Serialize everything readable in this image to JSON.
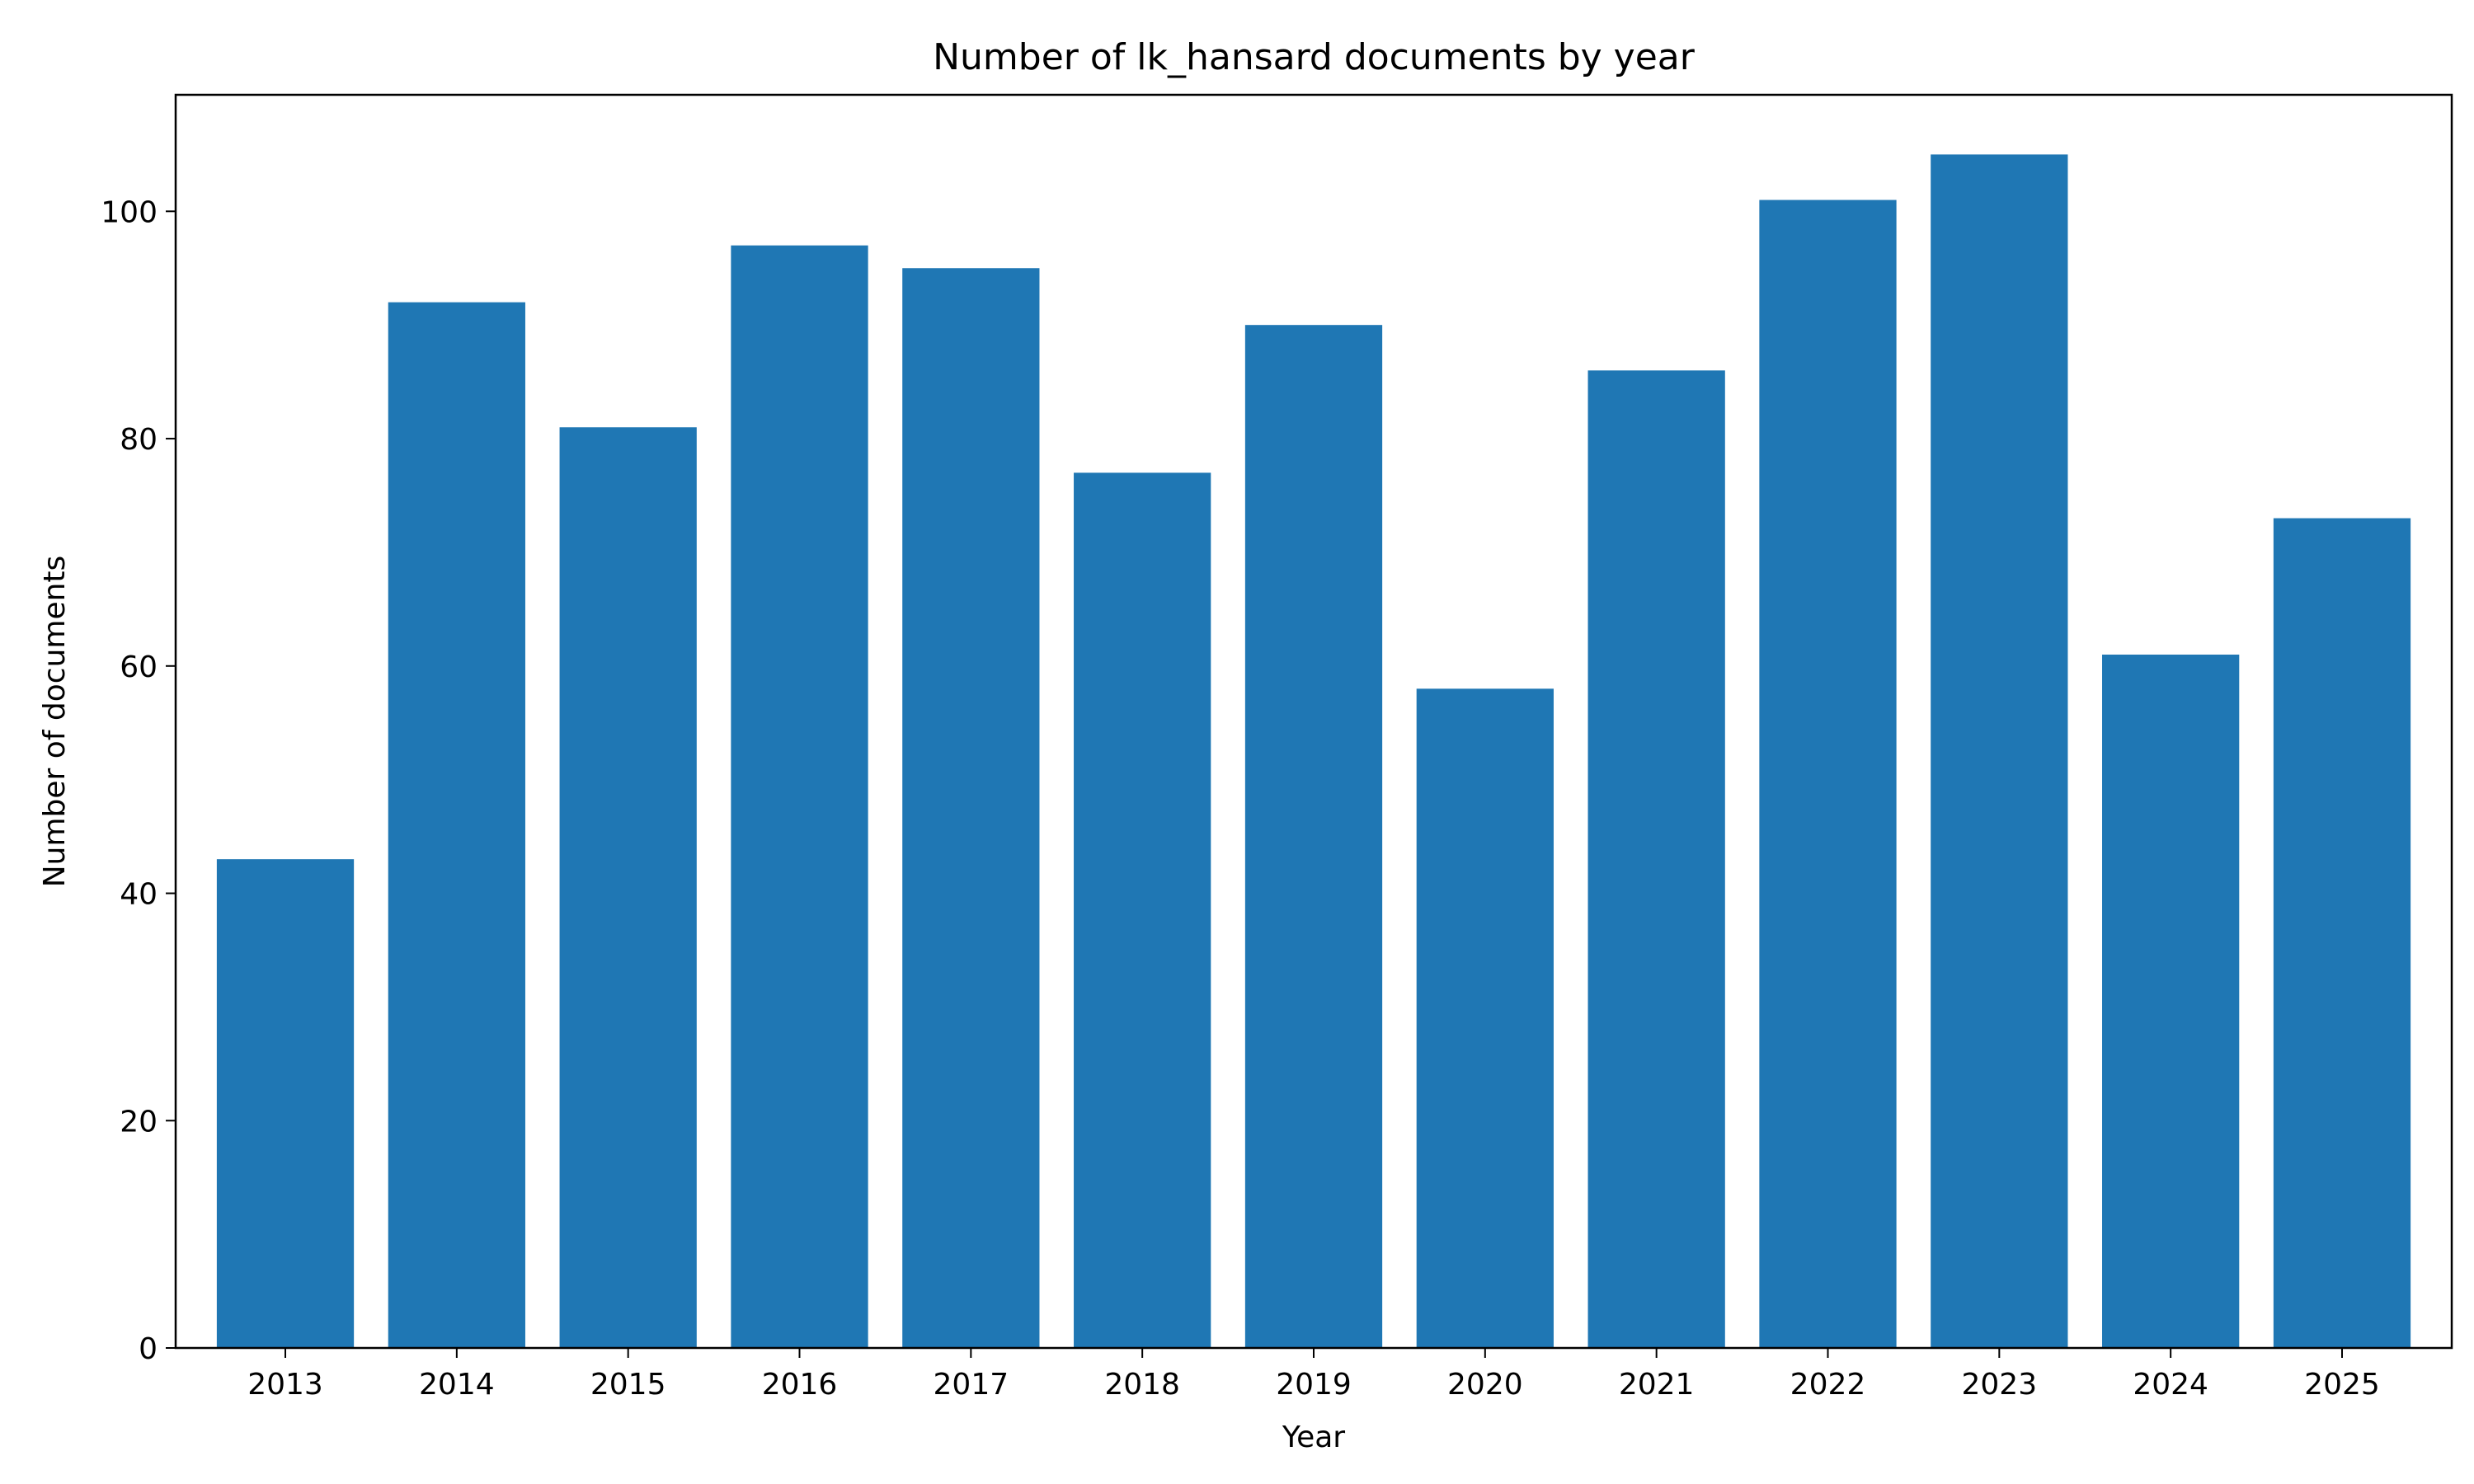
{
  "chart_data": {
    "type": "bar",
    "title": "Number of lk_hansard documents by year",
    "xlabel": "Year",
    "ylabel": "Number of documents",
    "categories": [
      "2013",
      "2014",
      "2015",
      "2016",
      "2017",
      "2018",
      "2019",
      "2020",
      "2021",
      "2022",
      "2023",
      "2024",
      "2025"
    ],
    "values": [
      43,
      92,
      81,
      97,
      95,
      77,
      90,
      58,
      86,
      101,
      105,
      61,
      73
    ],
    "ylim": [
      0,
      110.25
    ],
    "yticks": [
      0,
      20,
      40,
      60,
      80,
      100
    ],
    "ytick_labels": [
      "0",
      "20",
      "40",
      "60",
      "80",
      "100"
    ],
    "bar_color": "#1f77b4",
    "grid": false,
    "legend": "none"
  }
}
